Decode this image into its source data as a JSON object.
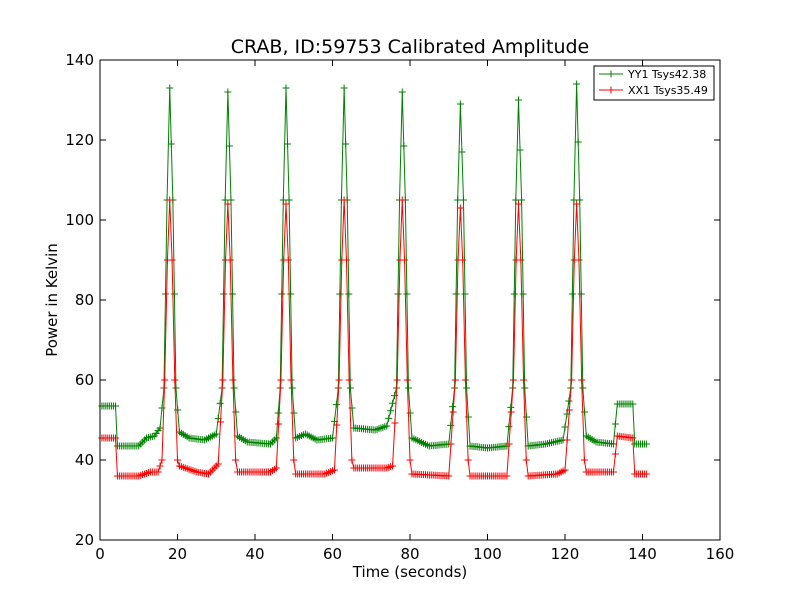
{
  "chart_data": {
    "type": "line",
    "title": "CRAB, ID:59753 Calibrated Amplitude",
    "xlabel": "Time (seconds)",
    "ylabel": "Power in Kelvin",
    "xlim": [
      0,
      160
    ],
    "ylim": [
      20,
      140
    ],
    "xticks": [
      "0",
      "20",
      "40",
      "60",
      "80",
      "100",
      "120",
      "140",
      "160"
    ],
    "yticks": [
      "20",
      "40",
      "60",
      "80",
      "100",
      "120",
      "140"
    ],
    "grid": false,
    "legend_position": "top-right",
    "marker": "+",
    "peak_times": [
      18,
      33,
      48,
      63,
      78,
      93,
      108,
      123
    ],
    "series": [
      {
        "name": "YY1 Tsys42.38",
        "color": "#008000",
        "peaks": [
          133,
          132,
          133,
          133,
          132,
          129,
          130,
          134
        ],
        "points": [
          [
            0.5,
            53.5
          ],
          [
            4,
            53.5
          ],
          [
            4.5,
            43.5
          ],
          [
            10,
            43.5
          ],
          [
            12,
            45.5
          ],
          [
            14,
            46
          ],
          [
            15.5,
            48
          ],
          [
            16.5,
            58
          ],
          [
            17.3,
            105
          ],
          [
            18,
            133
          ],
          [
            18.8,
            105
          ],
          [
            19.6,
            58
          ],
          [
            20.5,
            47
          ],
          [
            23,
            45.5
          ],
          [
            27,
            45
          ],
          [
            30,
            46.5
          ],
          [
            31.5,
            58
          ],
          [
            32.3,
            105
          ],
          [
            33,
            132
          ],
          [
            33.8,
            105
          ],
          [
            34.6,
            58
          ],
          [
            35.5,
            46
          ],
          [
            38,
            44.5
          ],
          [
            44,
            44
          ],
          [
            45.5,
            45.5
          ],
          [
            46.5,
            58
          ],
          [
            47.3,
            105
          ],
          [
            48,
            133
          ],
          [
            48.8,
            105
          ],
          [
            49.6,
            58
          ],
          [
            50.5,
            45.5
          ],
          [
            53,
            46.5
          ],
          [
            56,
            45
          ],
          [
            60,
            45.5
          ],
          [
            61.5,
            58
          ],
          [
            62.3,
            105
          ],
          [
            63,
            133
          ],
          [
            63.8,
            105
          ],
          [
            64.6,
            58
          ],
          [
            65.5,
            48
          ],
          [
            71,
            47.5
          ],
          [
            74,
            48.5
          ],
          [
            76.5,
            58
          ],
          [
            77.3,
            105
          ],
          [
            78,
            132
          ],
          [
            78.8,
            105
          ],
          [
            79.6,
            58
          ],
          [
            80.5,
            45.5
          ],
          [
            85,
            43.5
          ],
          [
            90,
            44
          ],
          [
            91.5,
            58
          ],
          [
            92.3,
            105
          ],
          [
            93,
            129
          ],
          [
            93.8,
            105
          ],
          [
            94.6,
            58
          ],
          [
            95.5,
            43.5
          ],
          [
            100,
            43
          ],
          [
            105,
            43.5
          ],
          [
            106.5,
            58
          ],
          [
            107.3,
            105
          ],
          [
            108,
            130
          ],
          [
            108.8,
            105
          ],
          [
            109.6,
            58
          ],
          [
            110.5,
            43.5
          ],
          [
            115,
            44
          ],
          [
            119.5,
            45
          ],
          [
            121.5,
            58
          ],
          [
            122.3,
            105
          ],
          [
            123,
            134
          ],
          [
            123.8,
            105
          ],
          [
            124.6,
            58
          ],
          [
            125.5,
            46
          ],
          [
            128,
            44.5
          ],
          [
            132.5,
            44
          ],
          [
            133.5,
            54
          ],
          [
            137.5,
            54
          ],
          [
            138,
            44
          ],
          [
            141,
            44
          ]
        ]
      },
      {
        "name": "XX1 Tsys35.49",
        "color": "#ff0000",
        "peaks": [
          105,
          104,
          104,
          105,
          105,
          103,
          104,
          104
        ],
        "points": [
          [
            0.5,
            45.5
          ],
          [
            4,
            45.5
          ],
          [
            4.5,
            36
          ],
          [
            10,
            36
          ],
          [
            13,
            37
          ],
          [
            15,
            37
          ],
          [
            16,
            40
          ],
          [
            16.7,
            60
          ],
          [
            17.4,
            90
          ],
          [
            18,
            105
          ],
          [
            18.6,
            90
          ],
          [
            19.3,
            60
          ],
          [
            20,
            40
          ],
          [
            20.5,
            38.5
          ],
          [
            25,
            37
          ],
          [
            28,
            36.5
          ],
          [
            30.5,
            39
          ],
          [
            31.7,
            60
          ],
          [
            32.4,
            90
          ],
          [
            33,
            104
          ],
          [
            33.6,
            90
          ],
          [
            34.3,
            60
          ],
          [
            35,
            40
          ],
          [
            35.5,
            37
          ],
          [
            44,
            37
          ],
          [
            45.5,
            38
          ],
          [
            46.7,
            60
          ],
          [
            47.4,
            90
          ],
          [
            48,
            104
          ],
          [
            48.6,
            90
          ],
          [
            49.3,
            60
          ],
          [
            50,
            40
          ],
          [
            50.5,
            36.5
          ],
          [
            58,
            36.5
          ],
          [
            60.5,
            37.5
          ],
          [
            61.7,
            60
          ],
          [
            62.4,
            90
          ],
          [
            63,
            105
          ],
          [
            63.6,
            90
          ],
          [
            64.3,
            60
          ],
          [
            65,
            40
          ],
          [
            65.5,
            38
          ],
          [
            74,
            38
          ],
          [
            75.5,
            38.5
          ],
          [
            76.7,
            60
          ],
          [
            77.4,
            90
          ],
          [
            78,
            105
          ],
          [
            78.6,
            90
          ],
          [
            79.3,
            60
          ],
          [
            80,
            40
          ],
          [
            80.5,
            36.5
          ],
          [
            90,
            36
          ],
          [
            91.7,
            60
          ],
          [
            92.4,
            90
          ],
          [
            93,
            103
          ],
          [
            93.6,
            90
          ],
          [
            94.3,
            60
          ],
          [
            95,
            40
          ],
          [
            95.5,
            36
          ],
          [
            105,
            36
          ],
          [
            106.7,
            60
          ],
          [
            107.4,
            90
          ],
          [
            108,
            104
          ],
          [
            108.6,
            90
          ],
          [
            109.3,
            60
          ],
          [
            110,
            40
          ],
          [
            110.5,
            36
          ],
          [
            118,
            36.5
          ],
          [
            120,
            37.5
          ],
          [
            121.7,
            60
          ],
          [
            122.4,
            90
          ],
          [
            123,
            104
          ],
          [
            123.6,
            90
          ],
          [
            124.3,
            60
          ],
          [
            125,
            40
          ],
          [
            125.5,
            37
          ],
          [
            132.5,
            37
          ],
          [
            133.5,
            46
          ],
          [
            137.5,
            45.5
          ],
          [
            138,
            36.5
          ],
          [
            141,
            36.5
          ]
        ]
      }
    ]
  }
}
